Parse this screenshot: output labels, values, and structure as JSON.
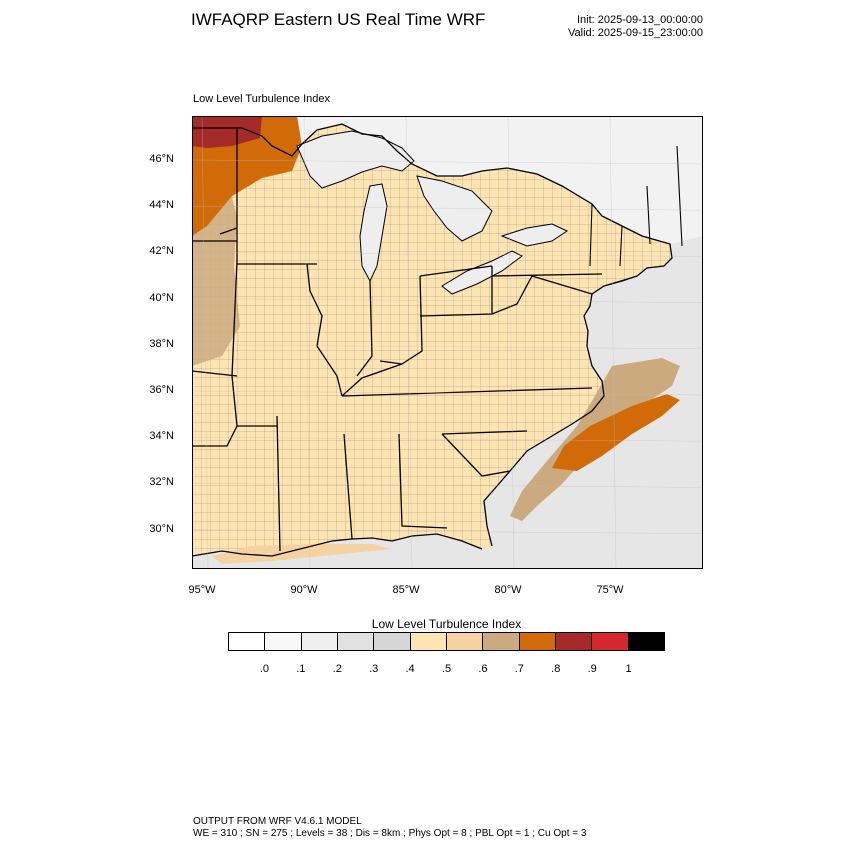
{
  "header": {
    "title": "IWFAQRP Eastern US Real Time WRF",
    "init": "Init: 2025-09-13_00:00:00",
    "valid": "Valid: 2025-09-15_23:00:00"
  },
  "map": {
    "title": "Low Level Turbulence Index",
    "lat_labels": [
      "46°N",
      "44°N",
      "42°N",
      "40°N",
      "38°N",
      "36°N",
      "34°N",
      "32°N",
      "30°N"
    ],
    "lon_labels": [
      "95°W",
      "90°W",
      "85°W",
      "80°W",
      "75°W"
    ],
    "lat_values": [
      46,
      44,
      42,
      40,
      38,
      36,
      34,
      32,
      30
    ],
    "lon_values": [
      -95,
      -90,
      -85,
      -80,
      -75
    ],
    "colors": {
      "land_default": "#ffe4b3",
      "ocean": "#e6e6e6",
      "lakes": "#eeeeee",
      "canada": "#f2f2f2",
      "boundary": "#000000"
    }
  },
  "colorbar": {
    "title": "Low Level Turbulence Index",
    "labels": [
      ".0",
      ".1",
      ".2",
      ".3",
      ".4",
      ".5",
      ".6",
      ".7",
      ".8",
      ".9",
      "1"
    ],
    "colors": [
      "#ffffff",
      "#f8f8f8",
      "#efefef",
      "#e1e1e1",
      "#d6d6d6",
      "#ffe4b3",
      "#f5d2a2",
      "#ccaa80",
      "#d16a09",
      "#a52a2a",
      "#d4282e",
      "#000000"
    ]
  },
  "footer": {
    "line1": "OUTPUT FROM WRF V4.6.1 MODEL",
    "line2": "WE = 310 ; SN = 275 ; Levels = 38 ; Dis = 8km ; Phys Opt = 8 ; PBL Opt = 1 ; Cu Opt = 3"
  }
}
